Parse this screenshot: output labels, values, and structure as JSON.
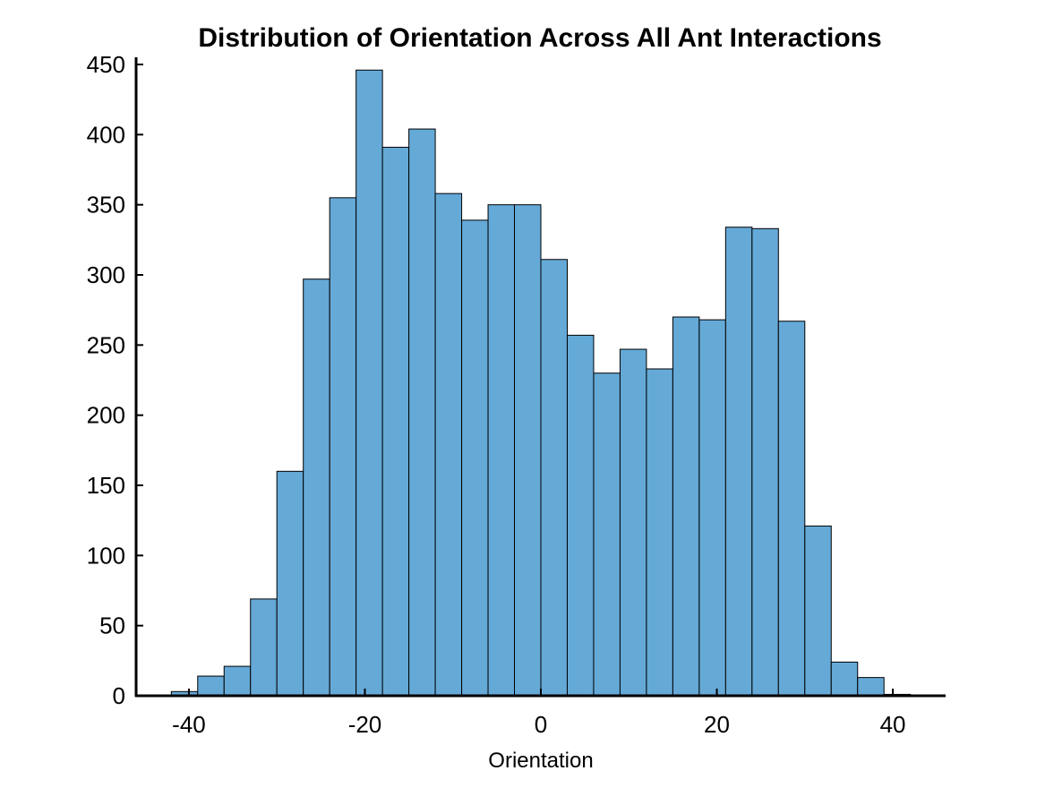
{
  "chart_data": {
    "type": "bar",
    "title": "Distribution of Orientation Across All Ant Interactions",
    "xlabel": "Orientation",
    "ylabel": "",
    "bin_edges": [
      -42,
      -39,
      -36,
      -33,
      -30,
      -27,
      -24,
      -21,
      -18,
      -15,
      -12,
      -9,
      -6,
      -3,
      0,
      3,
      6,
      9,
      12,
      15,
      18,
      21,
      24,
      27,
      30,
      33,
      36,
      39,
      42
    ],
    "values": [
      3,
      14,
      21,
      69,
      160,
      297,
      355,
      446,
      391,
      404,
      358,
      339,
      350,
      350,
      311,
      257,
      230,
      247,
      233,
      270,
      268,
      334,
      333,
      267,
      121,
      24,
      13,
      1
    ],
    "xlim": [
      -46,
      46
    ],
    "ylim": [
      0,
      450
    ],
    "xticks": [
      -40,
      -20,
      0,
      20,
      40
    ],
    "xtick_labels": [
      "-40",
      "-20",
      "0",
      "20",
      "40"
    ],
    "yticks": [
      0,
      50,
      100,
      150,
      200,
      250,
      300,
      350,
      400,
      450
    ],
    "ytick_labels": [
      "0",
      "50",
      "100",
      "150",
      "200",
      "250",
      "300",
      "350",
      "400",
      "450"
    ],
    "grid": false,
    "legend": "none",
    "bar_color": "#65a9d7",
    "edge_color": "#000000"
  }
}
